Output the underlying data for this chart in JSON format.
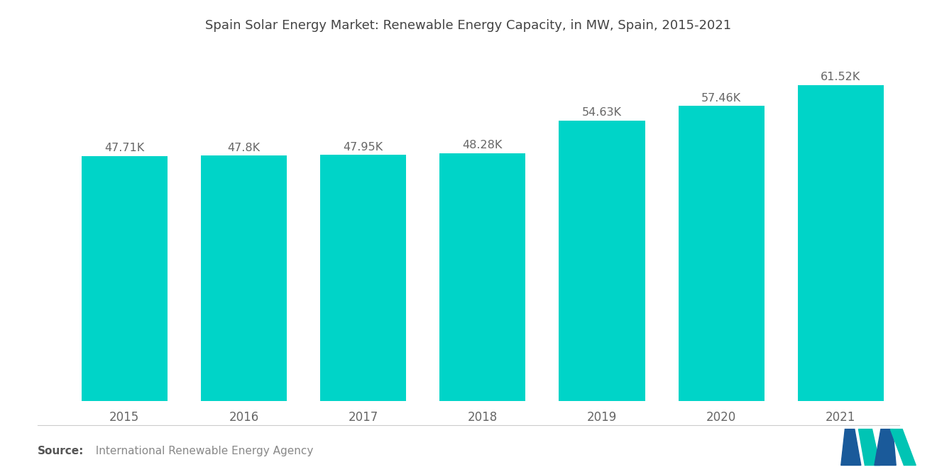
{
  "title": "Spain Solar Energy Market: Renewable Energy Capacity, in MW, Spain, 2015-2021",
  "categories": [
    "2015",
    "2016",
    "2017",
    "2018",
    "2019",
    "2020",
    "2021"
  ],
  "values": [
    47710,
    47800,
    47950,
    48280,
    54630,
    57460,
    61520
  ],
  "labels": [
    "47.71K",
    "47.8K",
    "47.95K",
    "48.28K",
    "54.63K",
    "57.46K",
    "61.52K"
  ],
  "bar_color": "#00D4C8",
  "background_color": "#ffffff",
  "title_fontsize": 13,
  "label_fontsize": 11.5,
  "tick_fontsize": 12,
  "source_bold": "Source:",
  "source_normal": "  International Renewable Energy Agency",
  "ylim": [
    0,
    68000
  ],
  "bar_width": 0.72
}
